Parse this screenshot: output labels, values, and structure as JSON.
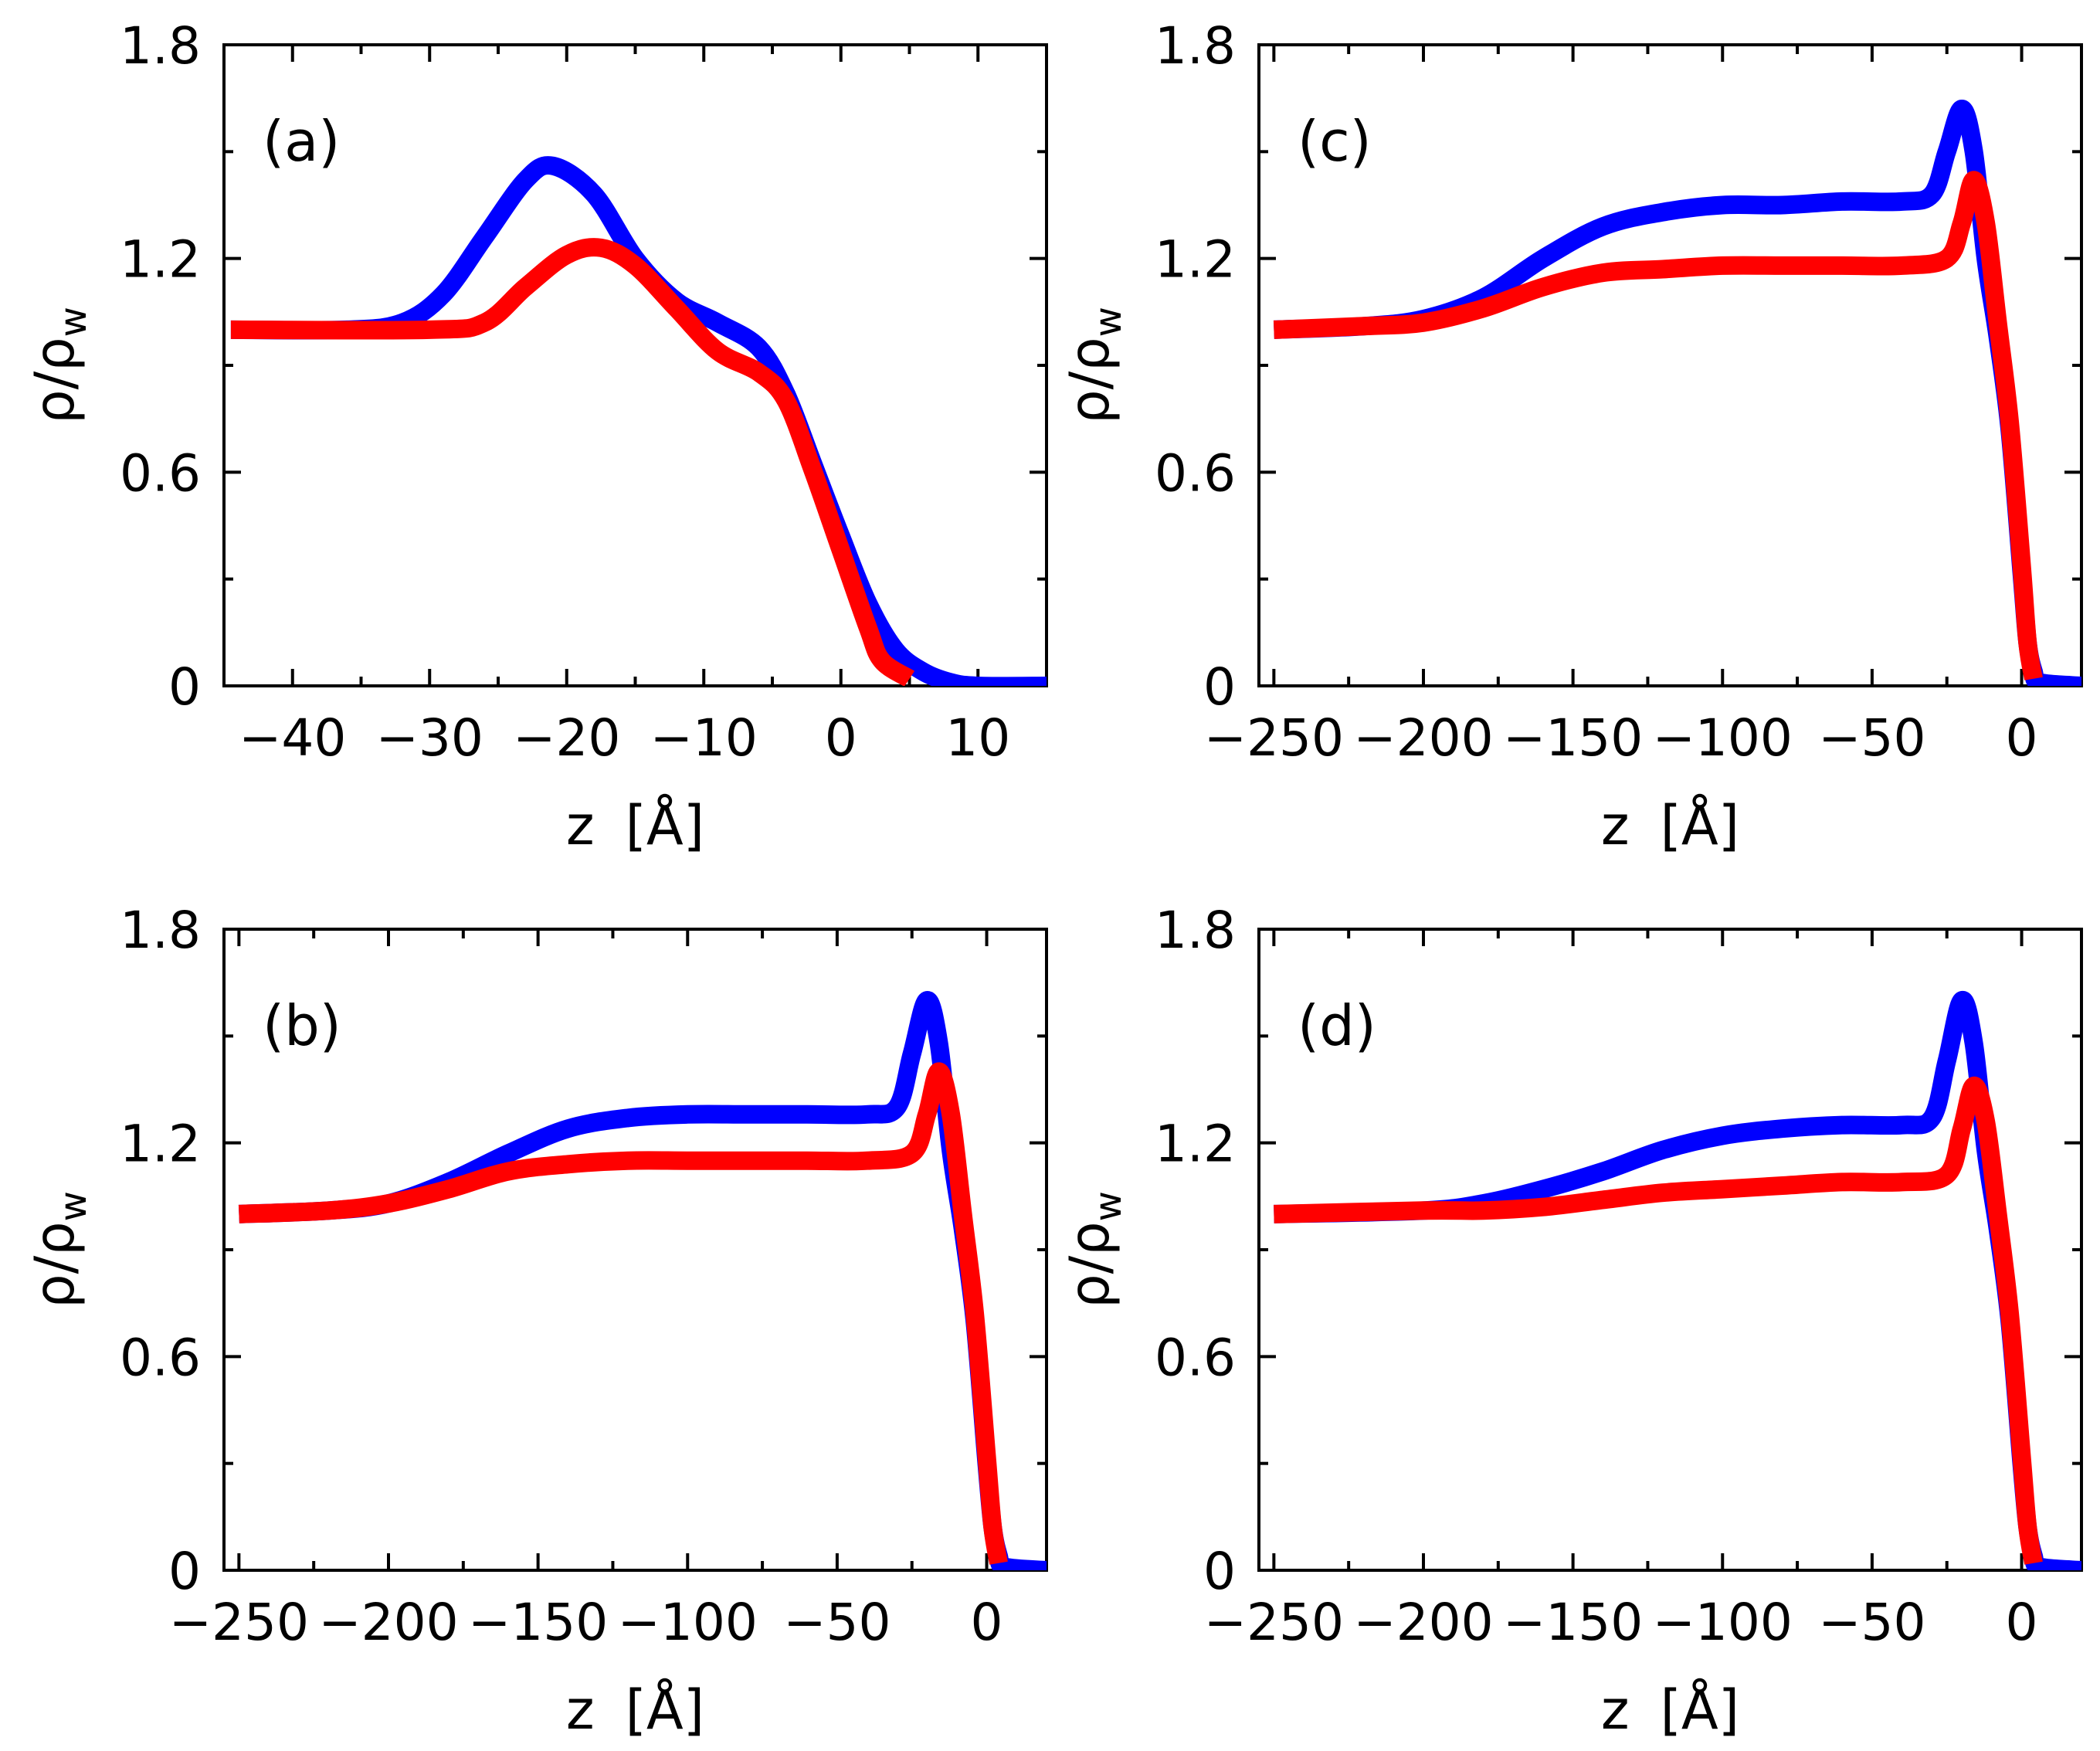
{
  "chart_data": [
    {
      "type": "line",
      "label": "(a)",
      "xlabel_prefix": "z",
      "xlabel_unit": "[Å]",
      "ylabel_main": "ρ/ρ",
      "ylabel_sub": "w",
      "xlim": [
        -45,
        15
      ],
      "ylim": [
        0,
        1.8
      ],
      "xticks": [
        -40,
        -30,
        -20,
        -10,
        0,
        10
      ],
      "xtick_labels": [
        "−40",
        "−30",
        "−20",
        "−10",
        "0",
        "10"
      ],
      "yticks": [
        0,
        0.6,
        1.2,
        1.8
      ],
      "ytick_labels": [
        "0",
        "0.6",
        "1.2",
        "1.8"
      ],
      "series": [
        {
          "name": "blue",
          "color": "#0000ff",
          "x": [
            -44.5,
            -36,
            -32,
            -29,
            -26,
            -23,
            -21,
            -18,
            -15,
            -12,
            -9,
            -6,
            -4,
            -2,
            0,
            2,
            4,
            6,
            8,
            10,
            15
          ],
          "y": [
            1.0,
            1.0,
            1.02,
            1.1,
            1.26,
            1.42,
            1.46,
            1.38,
            1.2,
            1.08,
            1.02,
            0.95,
            0.82,
            0.62,
            0.42,
            0.23,
            0.1,
            0.04,
            0.01,
            0.0,
            0.0
          ]
        },
        {
          "name": "red",
          "color": "#ff0000",
          "x": [
            -44.5,
            -30,
            -26,
            -23,
            -20,
            -17.5,
            -15,
            -12,
            -9,
            -6,
            -4,
            -2,
            0,
            2,
            3,
            5
          ],
          "y": [
            1.0,
            1.0,
            1.02,
            1.12,
            1.21,
            1.23,
            1.18,
            1.06,
            0.94,
            0.88,
            0.8,
            0.6,
            0.38,
            0.16,
            0.07,
            0.02
          ]
        }
      ]
    },
    {
      "type": "line",
      "label": "(c)",
      "xlabel_prefix": "z",
      "xlabel_unit": "[Å]",
      "ylabel_main": "ρ/ρ",
      "ylabel_sub": "w",
      "xlim": [
        -255,
        20
      ],
      "ylim": [
        0,
        1.8
      ],
      "xticks": [
        -250,
        -200,
        -150,
        -100,
        -50,
        0
      ],
      "xtick_labels": [
        "−250",
        "−200",
        "−150",
        "−100",
        "−50",
        "0"
      ],
      "yticks": [
        0,
        0.6,
        1.2,
        1.8
      ],
      "ytick_labels": [
        "0",
        "0.6",
        "1.2",
        "1.8"
      ],
      "series": [
        {
          "name": "blue",
          "color": "#0000ff",
          "x": [
            -250,
            -220,
            -200,
            -180,
            -160,
            -140,
            -120,
            -100,
            -80,
            -60,
            -40,
            -30,
            -25,
            -20,
            -16,
            -12,
            -8,
            -4,
            0,
            2,
            4,
            6,
            20
          ],
          "y": [
            1.0,
            1.01,
            1.03,
            1.09,
            1.2,
            1.29,
            1.33,
            1.35,
            1.35,
            1.36,
            1.36,
            1.38,
            1.5,
            1.62,
            1.5,
            1.2,
            0.98,
            0.72,
            0.32,
            0.12,
            0.04,
            0.01,
            0.0
          ]
        },
        {
          "name": "red",
          "color": "#ff0000",
          "x": [
            -250,
            -220,
            -200,
            -180,
            -160,
            -140,
            -120,
            -100,
            -80,
            -60,
            -40,
            -25,
            -20,
            -16,
            -12,
            -8,
            -4,
            0,
            2,
            4
          ],
          "y": [
            1.0,
            1.01,
            1.02,
            1.06,
            1.12,
            1.16,
            1.17,
            1.18,
            1.18,
            1.18,
            1.18,
            1.2,
            1.3,
            1.42,
            1.3,
            1.02,
            0.74,
            0.34,
            0.12,
            0.02
          ]
        }
      ]
    },
    {
      "type": "line",
      "label": "(b)",
      "xlabel_prefix": "z",
      "xlabel_unit": "[Å]",
      "ylabel_main": "ρ/ρ",
      "ylabel_sub": "w",
      "xlim": [
        -255,
        20
      ],
      "ylim": [
        0,
        1.8
      ],
      "xticks": [
        -250,
        -200,
        -150,
        -100,
        -50,
        0
      ],
      "xtick_labels": [
        "−250",
        "−200",
        "−150",
        "−100",
        "−50",
        "0"
      ],
      "yticks": [
        0,
        0.6,
        1.2,
        1.8
      ],
      "ytick_labels": [
        "0",
        "0.6",
        "1.2",
        "1.8"
      ],
      "series": [
        {
          "name": "blue",
          "color": "#0000ff",
          "x": [
            -250,
            -220,
            -200,
            -180,
            -160,
            -140,
            -120,
            -100,
            -80,
            -60,
            -40,
            -30,
            -25,
            -20,
            -16,
            -12,
            -8,
            -4,
            0,
            2,
            4,
            6,
            20
          ],
          "y": [
            1.0,
            1.01,
            1.03,
            1.09,
            1.17,
            1.24,
            1.27,
            1.28,
            1.28,
            1.28,
            1.28,
            1.3,
            1.45,
            1.6,
            1.48,
            1.18,
            0.96,
            0.7,
            0.3,
            0.12,
            0.04,
            0.01,
            0.0
          ]
        },
        {
          "name": "red",
          "color": "#ff0000",
          "x": [
            -250,
            -220,
            -200,
            -180,
            -160,
            -140,
            -120,
            -100,
            -80,
            -60,
            -40,
            -25,
            -20,
            -16,
            -12,
            -8,
            -4,
            0,
            2,
            4
          ],
          "y": [
            1.0,
            1.01,
            1.03,
            1.07,
            1.12,
            1.14,
            1.15,
            1.15,
            1.15,
            1.15,
            1.15,
            1.17,
            1.28,
            1.4,
            1.28,
            1.0,
            0.72,
            0.32,
            0.12,
            0.02
          ]
        }
      ]
    },
    {
      "type": "line",
      "label": "(d)",
      "xlabel_prefix": "z",
      "xlabel_unit": "[Å]",
      "ylabel_main": "ρ/ρ",
      "ylabel_sub": "w",
      "xlim": [
        -255,
        20
      ],
      "ylim": [
        0,
        1.8
      ],
      "xticks": [
        -250,
        -200,
        -150,
        -100,
        -50,
        0
      ],
      "xtick_labels": [
        "−250",
        "−200",
        "−150",
        "−100",
        "−50",
        "0"
      ],
      "yticks": [
        0,
        0.6,
        1.2,
        1.8
      ],
      "ytick_labels": [
        "0",
        "0.6",
        "1.2",
        "1.8"
      ],
      "series": [
        {
          "name": "blue",
          "color": "#0000ff",
          "x": [
            -250,
            -200,
            -180,
            -160,
            -140,
            -120,
            -100,
            -80,
            -60,
            -40,
            -30,
            -25,
            -20,
            -16,
            -12,
            -8,
            -4,
            0,
            2,
            4,
            6,
            20
          ],
          "y": [
            1.0,
            1.01,
            1.03,
            1.07,
            1.12,
            1.18,
            1.22,
            1.24,
            1.25,
            1.25,
            1.27,
            1.43,
            1.6,
            1.48,
            1.18,
            0.96,
            0.7,
            0.3,
            0.12,
            0.04,
            0.01,
            0.0
          ]
        },
        {
          "name": "red",
          "color": "#ff0000",
          "x": [
            -250,
            -200,
            -180,
            -160,
            -140,
            -120,
            -100,
            -80,
            -60,
            -40,
            -25,
            -20,
            -16,
            -12,
            -8,
            -4,
            0,
            2,
            4
          ],
          "y": [
            1.0,
            1.01,
            1.01,
            1.02,
            1.04,
            1.06,
            1.07,
            1.08,
            1.09,
            1.09,
            1.11,
            1.24,
            1.36,
            1.26,
            1.0,
            0.72,
            0.32,
            0.12,
            0.02
          ]
        }
      ]
    }
  ]
}
